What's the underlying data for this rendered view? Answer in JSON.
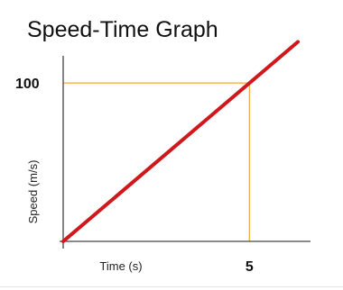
{
  "chart_data": {
    "type": "line",
    "title": "Speed-Time Graph",
    "xlabel": "Time (s)",
    "ylabel": "Speed (m/s)",
    "x_tick_labels": [
      {
        "value": 5,
        "label": "5"
      }
    ],
    "y_tick_labels": [
      {
        "value": 100,
        "label": "100"
      }
    ],
    "xlim": [
      0,
      6.3
    ],
    "ylim": [
      0,
      124
    ],
    "series": [
      {
        "x": [
          0,
          6.3
        ],
        "y": [
          0,
          126
        ],
        "color": "#d0181c"
      }
    ],
    "guides": [
      {
        "x": 5,
        "y": 100,
        "color": "#f2b24a"
      }
    ],
    "grid": false,
    "legend": "none"
  }
}
